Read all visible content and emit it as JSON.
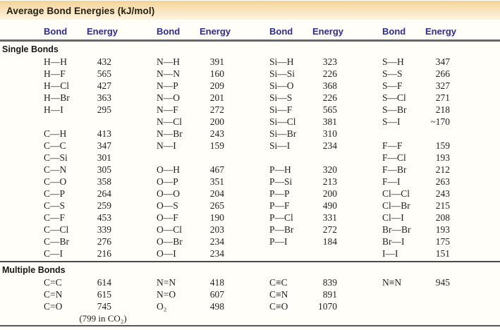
{
  "title": "Average Bond Energies (kJ/mol)",
  "col_headers": {
    "bond": "Bond",
    "energy": "Energy"
  },
  "colors": {
    "title_bar_top": "#f4d49c",
    "title_bar_bottom": "#fdf4e0",
    "header_text": "#2c2c91",
    "rule_dark": "#686868",
    "body_background": "#fffef8"
  },
  "sections": [
    {
      "label": "Single Bonds",
      "columns": [
        [
          {
            "bond": "H—H",
            "energy": "432"
          },
          {
            "bond": "H—F",
            "energy": "565"
          },
          {
            "bond": "H—Cl",
            "energy": "427"
          },
          {
            "bond": "H—Br",
            "energy": "363"
          },
          {
            "bond": "H—I",
            "energy": "295"
          },
          null,
          {
            "bond": "C—H",
            "energy": "413"
          },
          {
            "bond": "C—C",
            "energy": "347"
          },
          {
            "bond": "C—Si",
            "energy": "301"
          },
          {
            "bond": "C—N",
            "energy": "305"
          },
          {
            "bond": "C—O",
            "energy": "358"
          },
          {
            "bond": "C—P",
            "energy": "264"
          },
          {
            "bond": "C—S",
            "energy": "259"
          },
          {
            "bond": "C—F",
            "energy": "453"
          },
          {
            "bond": "C—Cl",
            "energy": "339"
          },
          {
            "bond": "C—Br",
            "energy": "276"
          },
          {
            "bond": "C—I",
            "energy": "216"
          }
        ],
        [
          {
            "bond": "N—H",
            "energy": "391"
          },
          {
            "bond": "N—N",
            "energy": "160"
          },
          {
            "bond": "N—P",
            "energy": "209"
          },
          {
            "bond": "N—O",
            "energy": "201"
          },
          {
            "bond": "N—F",
            "energy": "272"
          },
          {
            "bond": "N—Cl",
            "energy": "200"
          },
          {
            "bond": "N—Br",
            "energy": "243"
          },
          {
            "bond": "N—I",
            "energy": "159"
          },
          null,
          {
            "bond": "O—H",
            "energy": "467"
          },
          {
            "bond": "O—P",
            "energy": "351"
          },
          {
            "bond": "O—O",
            "energy": "204"
          },
          {
            "bond": "O—S",
            "energy": "265"
          },
          {
            "bond": "O—F",
            "energy": "190"
          },
          {
            "bond": "O—Cl",
            "energy": "203"
          },
          {
            "bond": "O—Br",
            "energy": "234"
          },
          {
            "bond": "O—I",
            "energy": "234"
          }
        ],
        [
          {
            "bond": "Si—H",
            "energy": "323"
          },
          {
            "bond": "Si—Si",
            "energy": "226"
          },
          {
            "bond": "Si—O",
            "energy": "368"
          },
          {
            "bond": "Si—S",
            "energy": "226"
          },
          {
            "bond": "Si—F",
            "energy": "565"
          },
          {
            "bond": "Si—Cl",
            "energy": "381"
          },
          {
            "bond": "Si—Br",
            "energy": "310"
          },
          {
            "bond": "Si—I",
            "energy": "234"
          },
          null,
          {
            "bond": "P—H",
            "energy": "320"
          },
          {
            "bond": "P—Si",
            "energy": "213"
          },
          {
            "bond": "P—P",
            "energy": "200"
          },
          {
            "bond": "P—F",
            "energy": "490"
          },
          {
            "bond": "P—Cl",
            "energy": "331"
          },
          {
            "bond": "P—Br",
            "energy": "272"
          },
          {
            "bond": "P—I",
            "energy": "184"
          },
          null
        ],
        [
          {
            "bond": "S—H",
            "energy": "347"
          },
          {
            "bond": "S—S",
            "energy": "266"
          },
          {
            "bond": "S—F",
            "energy": "327"
          },
          {
            "bond": "S—Cl",
            "energy": "271"
          },
          {
            "bond": "S—Br",
            "energy": "218"
          },
          {
            "bond": "S—I",
            "energy": "~170"
          },
          null,
          {
            "bond": "F—F",
            "energy": "159"
          },
          {
            "bond": "F—Cl",
            "energy": "193"
          },
          {
            "bond": "F—Br",
            "energy": "212"
          },
          {
            "bond": "F—I",
            "energy": "263"
          },
          {
            "bond": "Cl—Cl",
            "energy": "243"
          },
          {
            "bond": "Cl—Br",
            "energy": "215"
          },
          {
            "bond": "Cl—I",
            "energy": "208"
          },
          {
            "bond": "Br—Br",
            "energy": "193"
          },
          {
            "bond": "Br—I",
            "energy": "175"
          },
          {
            "bond": "I—I",
            "energy": "151"
          }
        ]
      ]
    },
    {
      "label": "Multiple Bonds",
      "columns": [
        [
          {
            "bond": "C=C",
            "energy": "614"
          },
          {
            "bond": "C=N",
            "energy": "615"
          },
          {
            "bond": "C=O",
            "energy": "745"
          },
          {
            "note": "(799 in CO₂)"
          }
        ],
        [
          {
            "bond": "N=N",
            "energy": "418"
          },
          {
            "bond": "N=O",
            "energy": "607"
          },
          {
            "bond": "O₂",
            "energy": "498"
          }
        ],
        [
          {
            "bond": "C≡C",
            "energy": "839"
          },
          {
            "bond": "C≡N",
            "energy": "891"
          },
          {
            "bond": "C≡O",
            "energy": "1070"
          }
        ],
        [
          {
            "bond": "N≡N",
            "energy": "945"
          }
        ]
      ]
    }
  ]
}
